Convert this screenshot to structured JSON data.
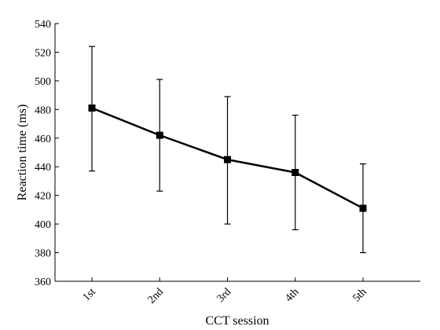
{
  "chart_data": {
    "type": "line",
    "title": "",
    "xlabel": "CCT session",
    "ylabel": "Reaction time (ms)",
    "categories": [
      "1st",
      "2nd",
      "3rd",
      "4th",
      "5th"
    ],
    "series": [
      {
        "values": [
          481,
          462,
          445,
          436,
          411
        ],
        "error_upper": [
          524,
          501,
          489,
          476,
          442
        ],
        "error_lower": [
          437,
          423,
          400,
          396,
          380
        ]
      }
    ],
    "ylim": [
      360,
      540
    ],
    "yticks": [
      "360",
      "380",
      "400",
      "420",
      "440",
      "460",
      "480",
      "500",
      "520",
      "540"
    ],
    "grid": false,
    "legend": "none",
    "marker": "square",
    "line_color": "#000000"
  }
}
